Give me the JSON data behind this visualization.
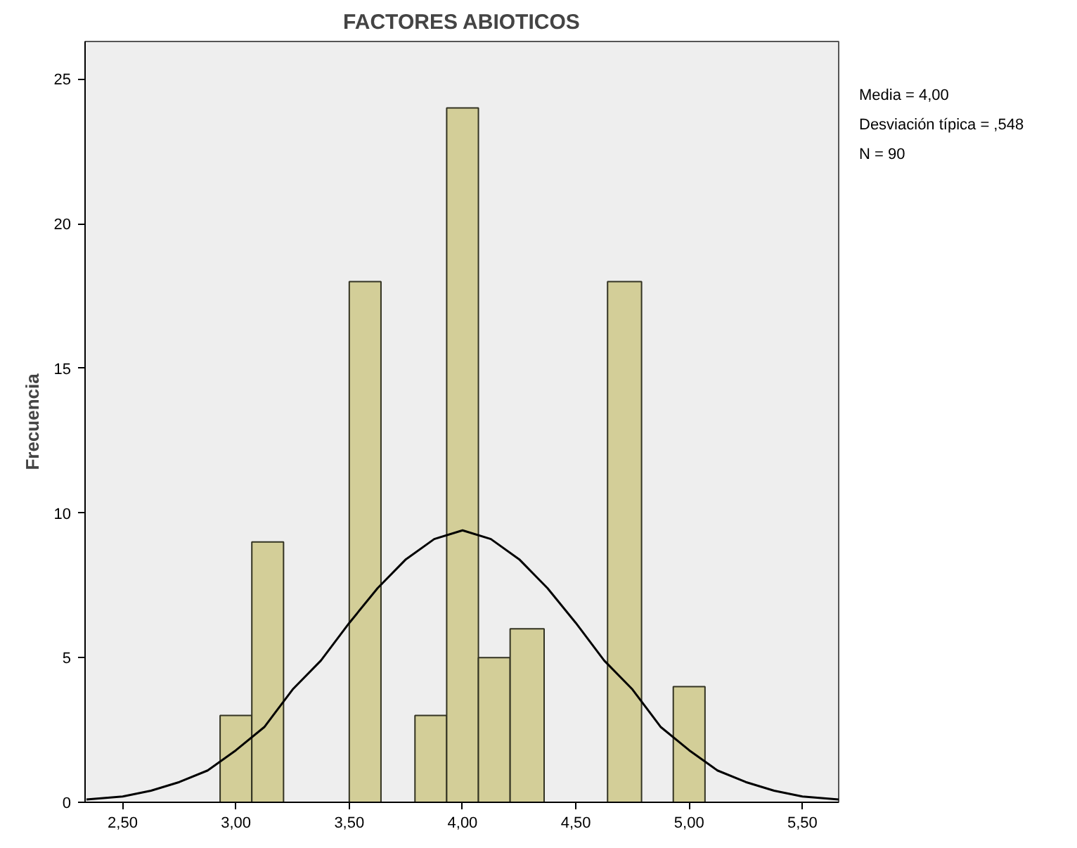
{
  "chart_data": {
    "type": "histogram",
    "title": "FACTORES ABIOTICOS",
    "ylabel": "Frecuencia",
    "bins": [
      2.93,
      3.07,
      3.21,
      3.5,
      3.64,
      3.79,
      3.93,
      4.07,
      4.21,
      4.36,
      4.64,
      4.79,
      4.93,
      5.07
    ],
    "values": [
      3,
      9,
      0,
      18,
      0,
      3,
      24,
      5,
      6,
      0,
      18,
      0,
      4
    ],
    "color": "#d3ce98",
    "series": [
      {
        "type": "line",
        "color": "#000000",
        "x": [
          2.34,
          2.5,
          2.625,
          2.75,
          2.875,
          3.0,
          3.125,
          3.25,
          3.375,
          3.5,
          3.625,
          3.75,
          3.875,
          4.0,
          4.125,
          4.25,
          4.375,
          4.5,
          4.625,
          4.75,
          4.875,
          5.0,
          5.125,
          5.25,
          5.375,
          5.5,
          5.66
        ],
        "values": [
          0.1,
          0.2,
          0.4,
          0.7,
          1.1,
          1.8,
          2.6,
          3.9,
          4.9,
          6.2,
          7.4,
          8.4,
          9.1,
          9.4,
          9.1,
          8.4,
          7.4,
          6.2,
          4.9,
          3.9,
          2.6,
          1.8,
          1.1,
          0.7,
          0.4,
          0.2,
          0.1
        ]
      }
    ],
    "xlim": [
      2.334,
      5.66
    ],
    "xticks": [
      {
        "value": 2.5,
        "label": "2,50"
      },
      {
        "value": 3.0,
        "label": "3,00"
      },
      {
        "value": 3.5,
        "label": "3,50"
      },
      {
        "value": 4.0,
        "label": "4,00"
      },
      {
        "value": 4.5,
        "label": "4,50"
      },
      {
        "value": 5.0,
        "label": "5,00"
      },
      {
        "value": 5.5,
        "label": "5,50"
      }
    ],
    "ylim": [
      0,
      26.3
    ],
    "yticks": [
      0,
      5,
      10,
      15,
      20,
      25
    ],
    "annotations": [
      "Media = 4,00",
      "Desviación típica = ,548",
      "N = 90"
    ],
    "grid": false
  }
}
